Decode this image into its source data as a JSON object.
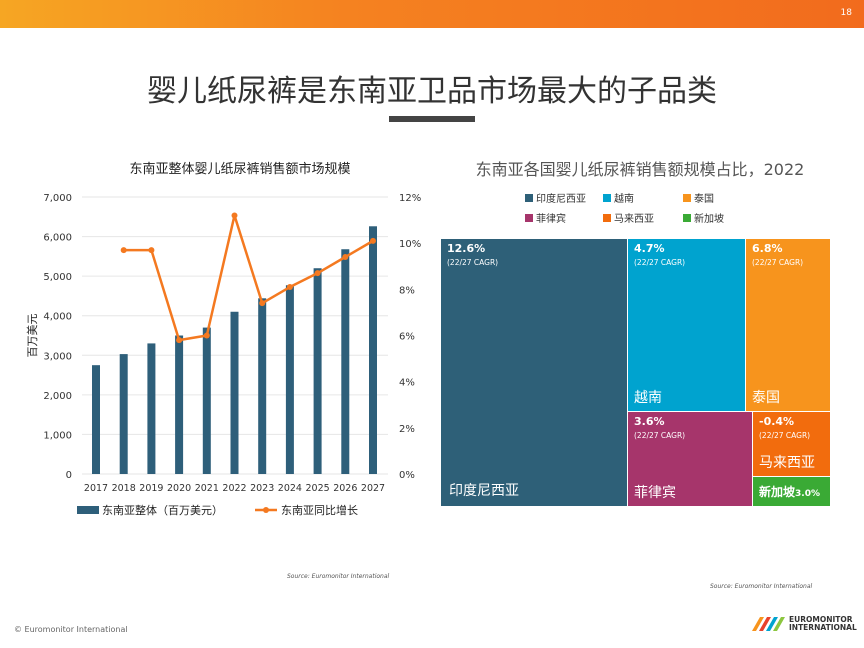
{
  "page_number": "18",
  "title": "婴儿纸尿裤是东南亚卫品市场最大的子品类",
  "footer": {
    "copyright": "© Euromonitor International",
    "logo_line1": "EUROMONITOR",
    "logo_line2": "INTERNATIONAL"
  },
  "chart_data": [
    {
      "type": "bar+line",
      "title": "东南亚整体婴儿纸尿裤销售额市场规模",
      "ylabel": "百万美元",
      "categories": [
        "2017",
        "2018",
        "2019",
        "2020",
        "2021",
        "2022",
        "2023",
        "2024",
        "2025",
        "2026",
        "2027"
      ],
      "y_ticks": [
        "0",
        "1,000",
        "2,000",
        "3,000",
        "4,000",
        "5,000",
        "6,000",
        "7,000"
      ],
      "y2_ticks": [
        "0%",
        "2%",
        "4%",
        "6%",
        "8%",
        "10%",
        "12%"
      ],
      "ylim": [
        0,
        7000
      ],
      "y2lim": [
        0,
        12
      ],
      "grid": true,
      "legend_position": "bottom",
      "series": [
        {
          "name": "东南亚整体（百万美元）",
          "type": "bar",
          "color": "#2e5f7a",
          "values": [
            2750,
            3030,
            3300,
            3500,
            3700,
            4100,
            4440,
            4770,
            5200,
            5680,
            6260
          ]
        },
        {
          "name": "东南亚同比增长",
          "type": "line",
          "axis": "right",
          "color": "#f47920",
          "values": [
            null,
            9.7,
            9.7,
            5.8,
            6.0,
            11.2,
            7.4,
            8.1,
            8.7,
            9.4,
            10.1
          ]
        }
      ],
      "source": "Source: Euromonitor International"
    },
    {
      "type": "treemap",
      "title": "东南亚各国婴儿纸尿裤销售额规模占比，2022",
      "legend_position": "top",
      "items": [
        {
          "name": "印度尼西亚",
          "cagr": "12.6%",
          "note": "(22/27 CAGR)",
          "color": "#2e6078"
        },
        {
          "name": "越南",
          "cagr": "4.7%",
          "note": "(22/27 CAGR)",
          "color": "#00a3cf"
        },
        {
          "name": "泰国",
          "cagr": "6.8%",
          "note": "(22/27 CAGR)",
          "color": "#f7941d"
        },
        {
          "name": "菲律宾",
          "cagr": "3.6%",
          "note": "(22/27 CAGR)",
          "color": "#a6356b"
        },
        {
          "name": "马来西亚",
          "cagr": "-0.4%",
          "note": "(22/27 CAGR)",
          "color": "#f26c0d"
        },
        {
          "name": "新加坡",
          "cagr": "3.0%",
          "note": "",
          "color": "#3aaa35"
        }
      ],
      "source": "Source: Euromonitor International"
    }
  ]
}
